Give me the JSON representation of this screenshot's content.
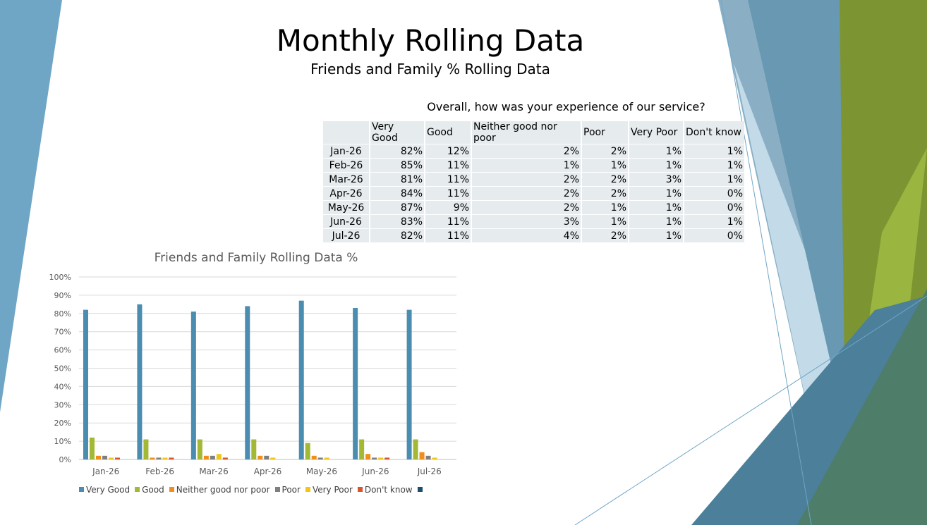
{
  "header": {
    "title": "Monthly Rolling Data",
    "subtitle": "Friends and Family % Rolling Data"
  },
  "table": {
    "question": "Overall, how was your experience of our service?",
    "columns": [
      "Very Good",
      "Good",
      "Neither good nor poor",
      "Poor",
      "Very Poor",
      "Don't know"
    ],
    "rows": [
      {
        "label": "Jan-26",
        "values": [
          "82%",
          "12%",
          "2%",
          "2%",
          "1%",
          "1%"
        ]
      },
      {
        "label": "Feb-26",
        "values": [
          "85%",
          "11%",
          "1%",
          "1%",
          "1%",
          "1%"
        ]
      },
      {
        "label": "Mar-26",
        "values": [
          "81%",
          "11%",
          "2%",
          "2%",
          "3%",
          "1%"
        ]
      },
      {
        "label": "Apr-26",
        "values": [
          "84%",
          "11%",
          "2%",
          "2%",
          "1%",
          "0%"
        ]
      },
      {
        "label": "May-26",
        "values": [
          "87%",
          "9%",
          "2%",
          "1%",
          "1%",
          "0%"
        ]
      },
      {
        "label": "Jun-26",
        "values": [
          "83%",
          "11%",
          "3%",
          "1%",
          "1%",
          "1%"
        ]
      },
      {
        "label": "Jul-26",
        "values": [
          "82%",
          "11%",
          "4%",
          "2%",
          "1%",
          "0%"
        ]
      }
    ]
  },
  "chart_data": {
    "type": "bar",
    "title": "Friends and Family Rolling Data %",
    "categories": [
      "Jan-26",
      "Feb-26",
      "Mar-26",
      "Apr-26",
      "May-26",
      "Jun-26",
      "Jul-26"
    ],
    "ylim": [
      0,
      100
    ],
    "yticks": [
      "0%",
      "10%",
      "20%",
      "30%",
      "40%",
      "50%",
      "60%",
      "70%",
      "80%",
      "90%",
      "100%"
    ],
    "grid": true,
    "legend_position": "bottom",
    "series": [
      {
        "name": "Very Good",
        "color": "#4a8db0",
        "values": [
          82,
          85,
          81,
          84,
          87,
          83,
          82
        ]
      },
      {
        "name": "Good",
        "color": "#a3b835",
        "values": [
          12,
          11,
          11,
          11,
          9,
          11,
          11
        ]
      },
      {
        "name": "Neither good nor poor",
        "color": "#ef8e1c",
        "values": [
          2,
          1,
          2,
          2,
          2,
          3,
          4
        ]
      },
      {
        "name": "Poor",
        "color": "#7f7f7f",
        "values": [
          2,
          1,
          2,
          2,
          1,
          1,
          2
        ]
      },
      {
        "name": "Very Poor",
        "color": "#f2c616",
        "values": [
          1,
          1,
          3,
          1,
          1,
          1,
          1
        ]
      },
      {
        "name": "Don't know",
        "color": "#d9552b",
        "values": [
          1,
          1,
          1,
          0,
          0,
          1,
          0
        ]
      },
      {
        "name": "",
        "color": "#1f4e6b",
        "values": [
          0,
          0,
          0,
          0,
          0,
          0,
          0
        ]
      }
    ]
  }
}
